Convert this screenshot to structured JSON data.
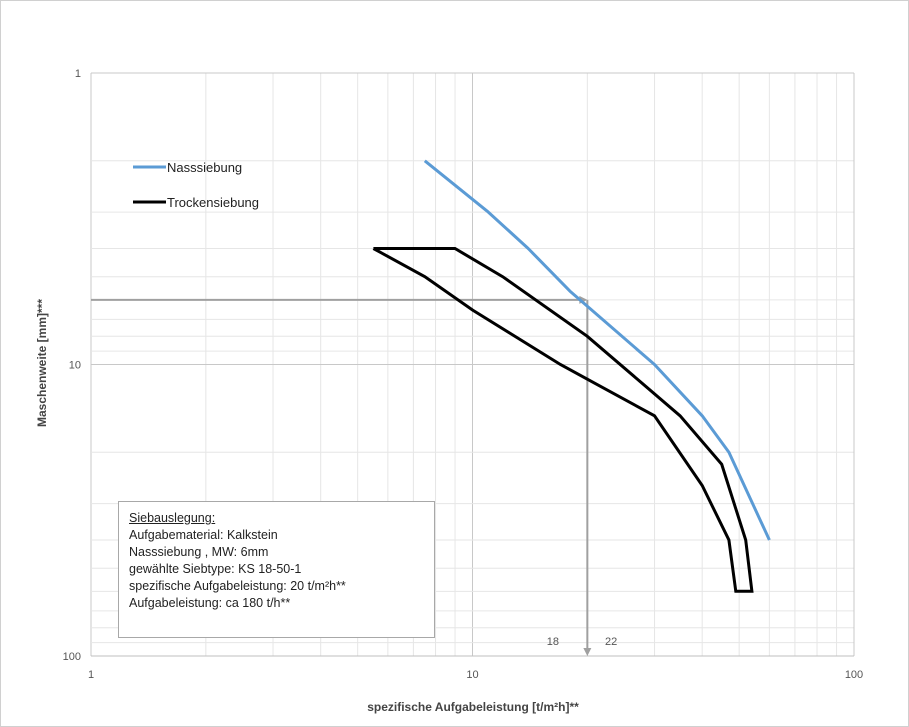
{
  "chart_data": {
    "type": "line",
    "x_scale": "log",
    "y_scale": "log",
    "y_reversed": true,
    "xlim": [
      1,
      100
    ],
    "ylim": [
      1,
      100
    ],
    "xlabel": "spezifische Aufgabeleistung [t/m²h]**",
    "ylabel": "Maschenweite [mm]***",
    "x_ticks": [
      1,
      10,
      100
    ],
    "y_ticks": [
      1,
      10,
      100
    ],
    "extra_x_ticks": [
      18,
      22
    ],
    "grid": true,
    "legend_position": "top-left",
    "series": [
      {
        "name": "Nasssiebung",
        "color": "#5b9bd5",
        "points": [
          [
            7.5,
            2.0
          ],
          [
            11,
            3.0
          ],
          [
            14,
            4.0
          ],
          [
            18,
            5.6
          ],
          [
            30,
            10.0
          ],
          [
            40,
            15.0
          ],
          [
            47,
            20.0
          ],
          [
            60,
            40.0
          ]
        ]
      },
      {
        "name": "Trockensiebung",
        "color": "#000000",
        "closed": true,
        "points": [
          [
            5.5,
            4.0
          ],
          [
            9.0,
            4.0
          ],
          [
            12,
            5.0
          ],
          [
            20,
            8.0
          ],
          [
            35,
            15.0
          ],
          [
            45,
            22.0
          ],
          [
            52,
            40.0
          ],
          [
            54,
            60.0
          ],
          [
            49,
            60.0
          ],
          [
            47,
            40.0
          ],
          [
            40,
            26.0
          ],
          [
            30,
            15.0
          ],
          [
            17,
            10.0
          ],
          [
            10,
            6.5
          ],
          [
            7.5,
            5.0
          ],
          [
            5.5,
            4.0
          ]
        ]
      }
    ],
    "reading_lines": {
      "color": "#a0a0a0",
      "y_value": 6,
      "x_value": 20
    }
  },
  "tick_labels": {
    "x": [
      "1",
      "10",
      "100"
    ],
    "y": [
      "1",
      "10",
      "100"
    ],
    "extra_x": [
      "18",
      "22"
    ]
  },
  "infobox": {
    "header": "Siebauslegung:",
    "lines": [
      "Aufgabematerial: Kalkstein",
      "Nasssiebung , MW: 6mm",
      "gewählte Siebtype: KS 18-50-1",
      "spezifische Aufgabeleistung: 20 t/m²h**",
      "Aufgabeleistung: ca 180 t/h**"
    ]
  }
}
